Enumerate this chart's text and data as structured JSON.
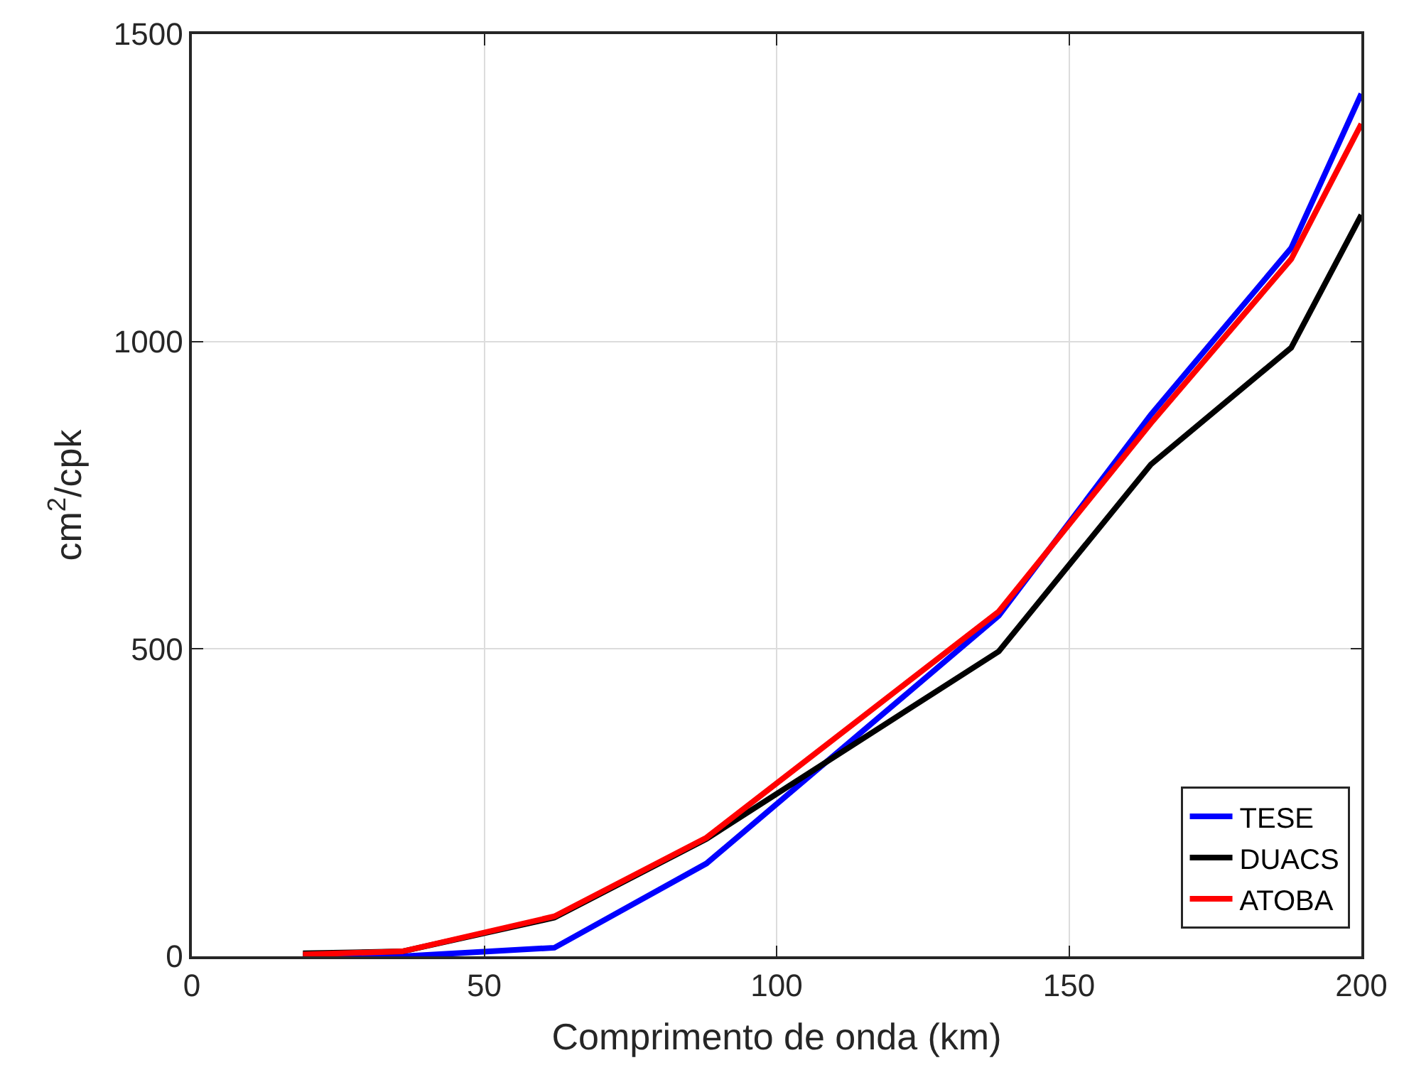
{
  "chart_data": {
    "type": "line",
    "xlabel": "Comprimento de onda (km)",
    "ylabel": "cm$^{2}$/cpk",
    "x": [
      19,
      36,
      62,
      88,
      138,
      164,
      188,
      200
    ],
    "series": [
      {
        "name": "TESE",
        "color": "#0000ff",
        "values": [
          0,
          0,
          14,
          151,
          554,
          881,
          1152,
          1403
        ]
      },
      {
        "name": "DUACS",
        "color": "#000000",
        "values": [
          5,
          8,
          63,
          191,
          496,
          800,
          990,
          1206
        ]
      },
      {
        "name": "ATOBA",
        "color": "#ff0000",
        "values": [
          3,
          8,
          65,
          193,
          561,
          867,
          1134,
          1354
        ]
      }
    ],
    "xlim": [
      0,
      200
    ],
    "xticks": [
      0,
      50,
      100,
      150,
      200
    ],
    "ylim": [
      0,
      1500
    ],
    "yticks": [
      0,
      500,
      1000,
      1500
    ],
    "grid": true,
    "legend": "bottom right",
    "line_style": "solid"
  }
}
